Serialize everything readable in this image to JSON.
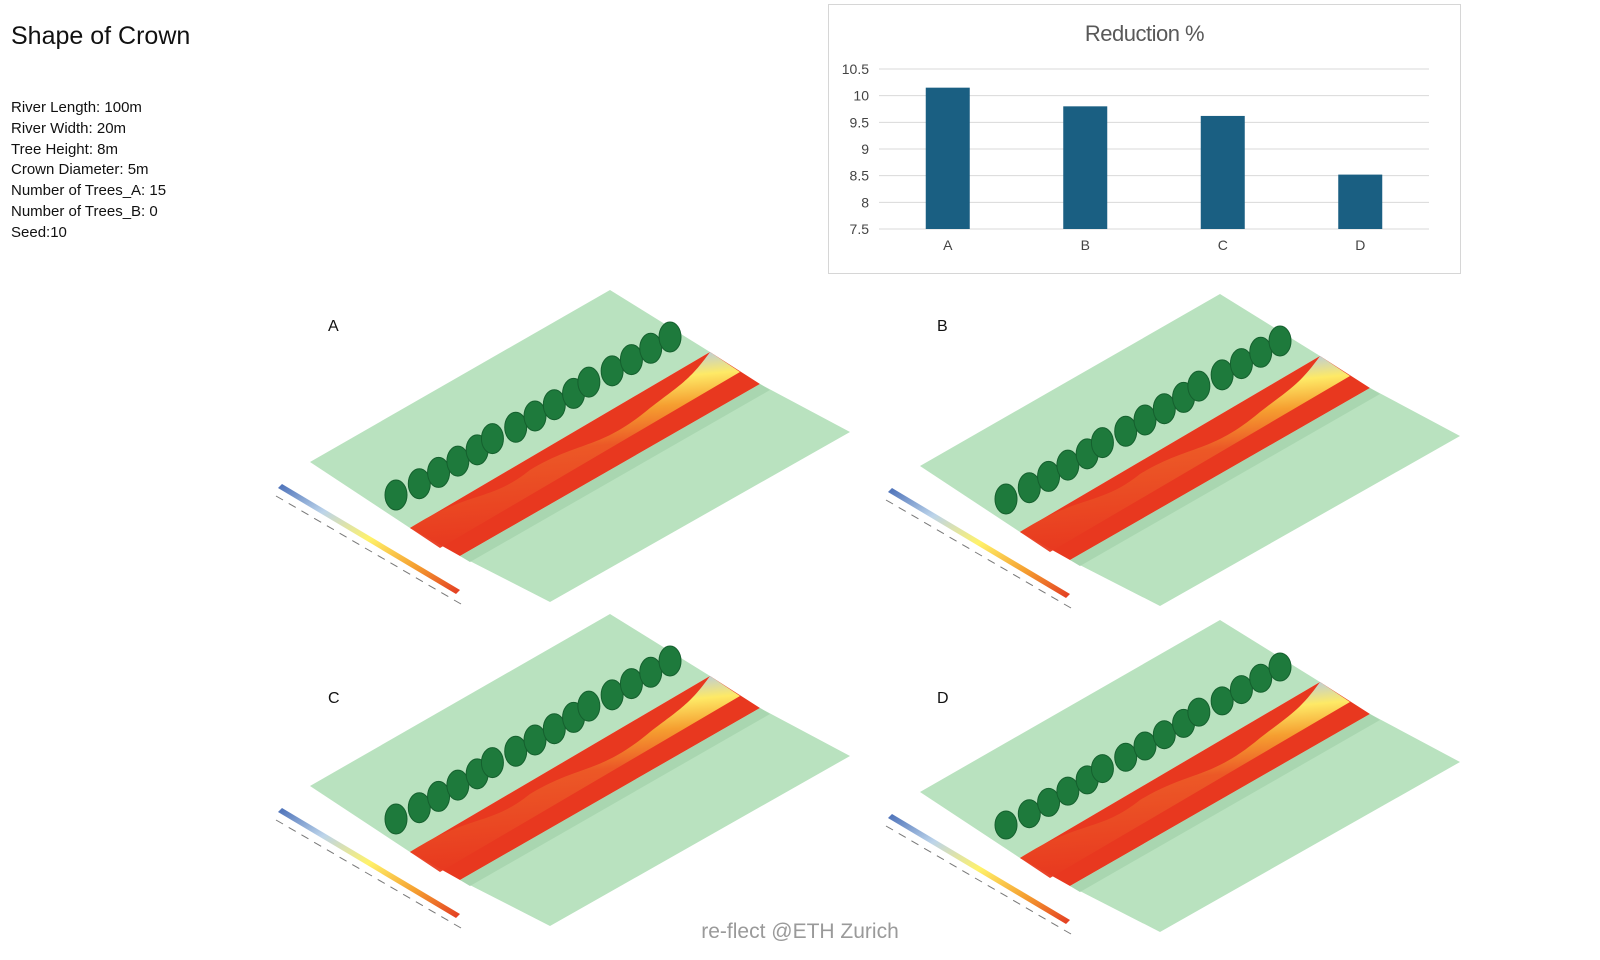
{
  "title": "Shape of Crown",
  "params": [
    "River Length: 100m",
    "River Width: 20m",
    "Tree Height: 8m",
    "Crown Diameter: 5m",
    "Number of Trees_A: 15",
    "Number of Trees_B: 0",
    "Seed:10"
  ],
  "chart_data": {
    "type": "bar",
    "title": "Reduction %",
    "categories": [
      "A",
      "B",
      "C",
      "D"
    ],
    "values": [
      10.15,
      9.8,
      9.62,
      8.52
    ],
    "ylim": [
      7.5,
      10.5
    ],
    "yticks": [
      "10.5",
      "10",
      "9.5",
      "9",
      "8.5",
      "8",
      "7.5"
    ],
    "xlabel": "",
    "ylabel": "",
    "grid": true,
    "bar_color": "#1a5f82"
  },
  "panels": [
    {
      "label": "A"
    },
    {
      "label": "B"
    },
    {
      "label": "C"
    },
    {
      "label": "D"
    }
  ],
  "colors": {
    "ground": "#b9e2bf",
    "tree": "#1e7a3c",
    "river_hot": "#e8381f",
    "river_cool": "#4a76c4"
  },
  "watermark": "re-flect @ETH Zurich"
}
